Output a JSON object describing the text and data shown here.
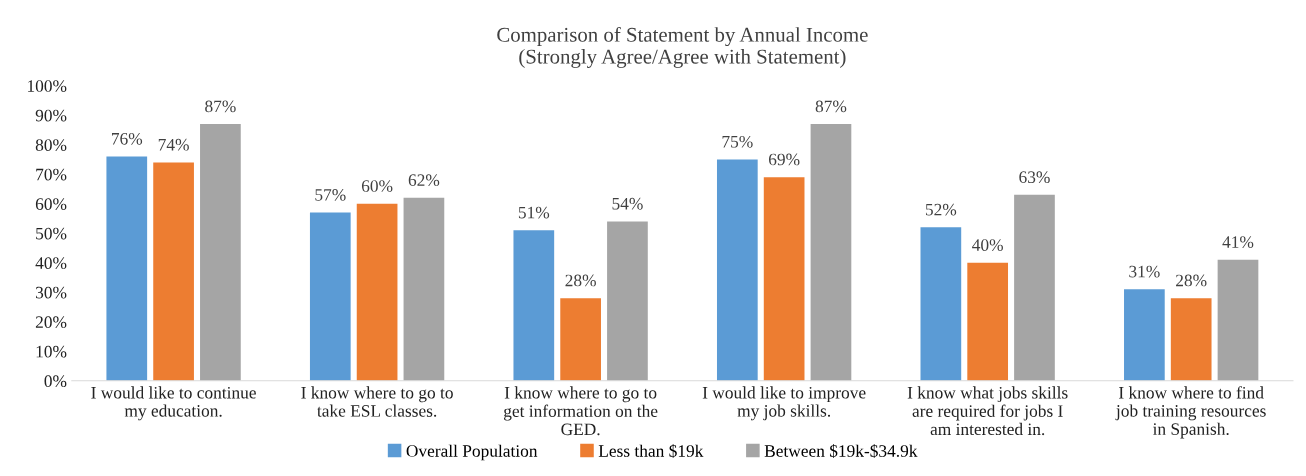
{
  "chart_data": {
    "type": "bar",
    "title": "Comparison of Statement by Annual Income\n(Strongly Agree/Agree with Statement)",
    "categories": [
      "I would like to continue\nmy education.",
      "I know where to go to\ntake ESL classes.",
      "I know where to go to\nget information on the\nGED.",
      "I would like to improve\nmy job skills.",
      "I know what jobs skills\nare required for jobs I\nam interested in.",
      "I know where to find\njob training resources\nin Spanish."
    ],
    "series": [
      {
        "name": "Overall Population",
        "color": "#5b9bd5",
        "values": [
          76,
          57,
          51,
          75,
          52,
          31
        ],
        "value_labels": [
          "76%",
          "57%",
          "51%",
          "75%",
          "52%",
          "31%"
        ]
      },
      {
        "name": "Less than $19k",
        "color": "#ed7d31",
        "values": [
          74,
          60,
          28,
          69,
          40,
          28
        ],
        "value_labels": [
          "74%",
          "60%",
          "28%",
          "69%",
          "40%",
          "28%"
        ]
      },
      {
        "name": "Between $19k-$34.9k",
        "color": "#a5a5a5",
        "values": [
          87,
          62,
          54,
          87,
          63,
          41
        ],
        "value_labels": [
          "87%",
          "62%",
          "54%",
          "87%",
          "63%",
          "41%"
        ]
      }
    ],
    "ylim": [
      0,
      100
    ],
    "yticks": [
      {
        "value": 0,
        "label": "0%"
      },
      {
        "value": 10,
        "label": "10%"
      },
      {
        "value": 20,
        "label": "20%"
      },
      {
        "value": 30,
        "label": "30%"
      },
      {
        "value": 40,
        "label": "40%"
      },
      {
        "value": 50,
        "label": "50%"
      },
      {
        "value": 60,
        "label": "60%"
      },
      {
        "value": 70,
        "label": "70%"
      },
      {
        "value": 80,
        "label": "80%"
      },
      {
        "value": 90,
        "label": "90%"
      },
      {
        "value": 100,
        "label": "100%"
      }
    ],
    "grid": false,
    "legend": "bottom"
  }
}
